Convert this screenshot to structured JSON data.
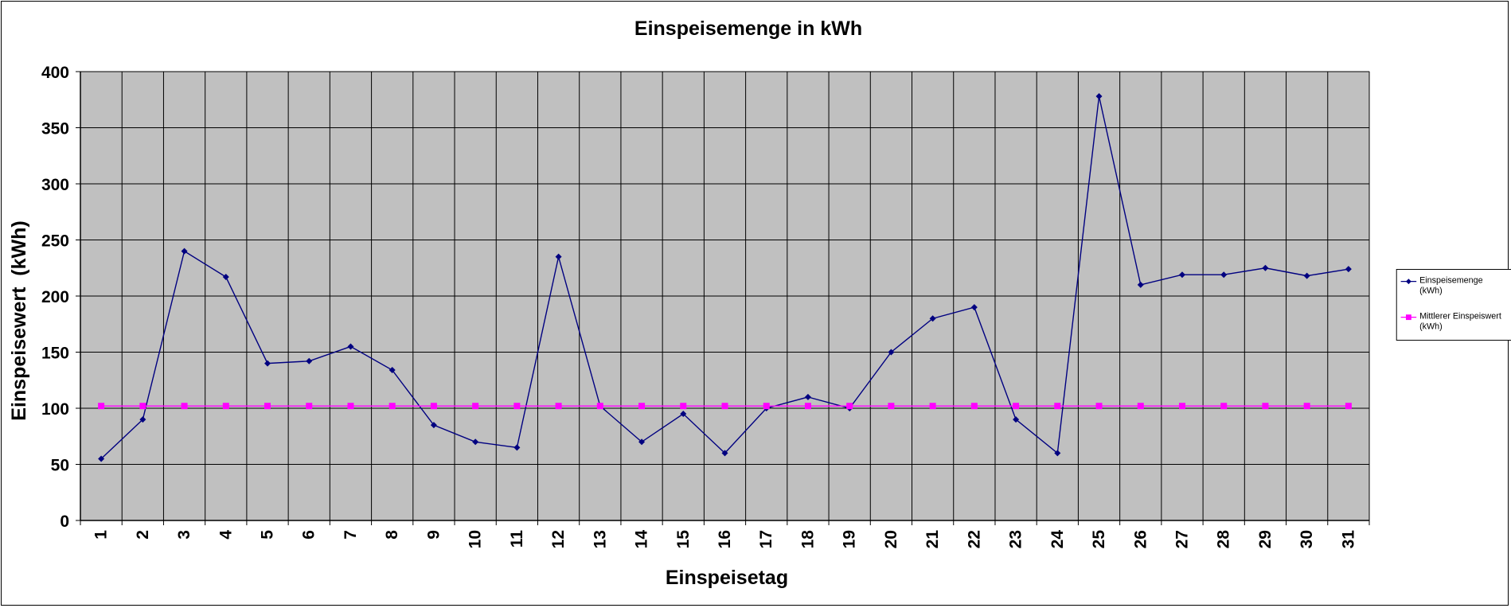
{
  "chart_data": {
    "type": "line",
    "title": "Einspeisemenge in kWh",
    "xlabel": "Einspeisetag",
    "ylabel": "Einspeisewert  (kWh)",
    "categories": [
      "1",
      "2",
      "3",
      "4",
      "5",
      "6",
      "7",
      "8",
      "9",
      "10",
      "11",
      "12",
      "13",
      "14",
      "15",
      "16",
      "17",
      "18",
      "19",
      "20",
      "21",
      "22",
      "23",
      "24",
      "25",
      "26",
      "27",
      "28",
      "29",
      "30",
      "31"
    ],
    "ylim": [
      0,
      400
    ],
    "yticks": [
      0,
      50,
      100,
      150,
      200,
      250,
      300,
      350,
      400
    ],
    "grid": true,
    "legend_position": "right",
    "series": [
      {
        "name": "Einspeisemenge (kWh)",
        "color": "#000080",
        "marker": "diamond",
        "values": [
          55,
          90,
          240,
          217,
          140,
          142,
          155,
          134,
          85,
          70,
          65,
          235,
          102,
          70,
          95,
          60,
          100,
          110,
          100,
          150,
          180,
          190,
          90,
          60,
          378,
          210,
          219,
          219,
          225,
          218,
          224
        ]
      },
      {
        "name": "Mittlerer Einspeiswert (kWh)",
        "color": "#ff00ff",
        "marker": "square",
        "values": [
          102,
          102,
          102,
          102,
          102,
          102,
          102,
          102,
          102,
          102,
          102,
          102,
          102,
          102,
          102,
          102,
          102,
          102,
          102,
          102,
          102,
          102,
          102,
          102,
          102,
          102,
          102,
          102,
          102,
          102,
          102
        ]
      }
    ],
    "plot_background": "#c0c0c0"
  },
  "legend": {
    "items": [
      {
        "line1": "Einspeisemenge",
        "line2": "(kWh)"
      },
      {
        "line1": "Mittlerer Einspeiswert",
        "line2": "(kWh)"
      }
    ]
  }
}
